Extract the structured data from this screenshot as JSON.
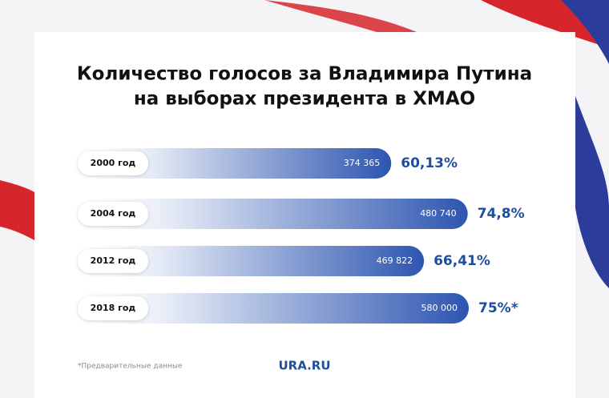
{
  "chart_data": {
    "type": "bar",
    "orientation": "horizontal",
    "title": [
      "Количество голосов за Владимира Путина",
      "на выборах президента в ХМАО"
    ],
    "categories": [
      "2000 год",
      "2004 год",
      "2012 год",
      "2018 год"
    ],
    "values": [
      60.13,
      74.8,
      66.41,
      75
    ],
    "value_labels": [
      "60,13%",
      "74,8%",
      "66,41%",
      "75%*"
    ],
    "votes": [
      374365,
      480740,
      469822,
      580000
    ],
    "vote_labels": [
      "374 365",
      "480 740",
      "469 822",
      "580 000"
    ],
    "color": "#2d55b0",
    "label_color": "#1d4e9e",
    "footnote": "*Предварительные данные",
    "source": "URA.RU"
  }
}
